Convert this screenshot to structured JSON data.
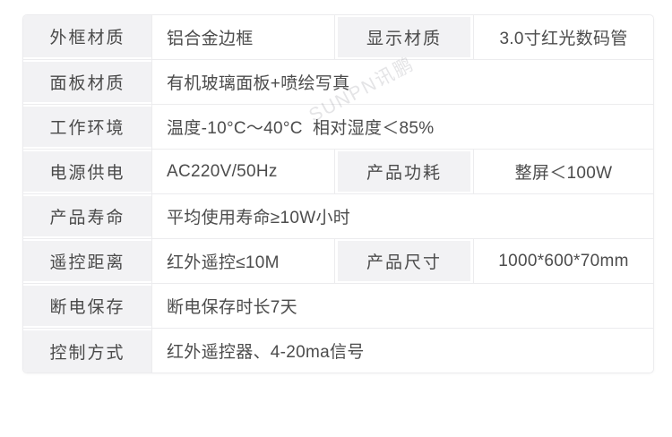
{
  "watermark": {
    "text": "SUNPN讯鹏"
  },
  "spec_table": {
    "rows": [
      {
        "label": "外框材质",
        "value": "铝合金边框",
        "label2": "显示材质",
        "value2": "3.0寸红光数码管"
      },
      {
        "label": "面板材质",
        "value": "有机玻璃面板+喷绘写真"
      },
      {
        "label": "工作环境",
        "value": "温度-10°C～40°C  相对湿度＜85%"
      },
      {
        "label": "电源供电",
        "value": "AC220V/50Hz",
        "label2": "产品功耗",
        "value2": "整屏＜100W"
      },
      {
        "label": "产品寿命",
        "value": "平均使用寿命≥10W小时"
      },
      {
        "label": "遥控距离",
        "value": "红外遥控≤10M",
        "label2": "产品尺寸",
        "value2": "1000*600*70mm"
      },
      {
        "label": "断电保存",
        "value": "断电保存时长7天"
      },
      {
        "label": "控制方式",
        "value": "红外遥控器、4-20ma信号"
      }
    ],
    "colors": {
      "label_bg": "#f2f2f4",
      "border": "#ececee",
      "text": "#4c4c4c",
      "watermark_text": "#e4e4e7"
    }
  }
}
